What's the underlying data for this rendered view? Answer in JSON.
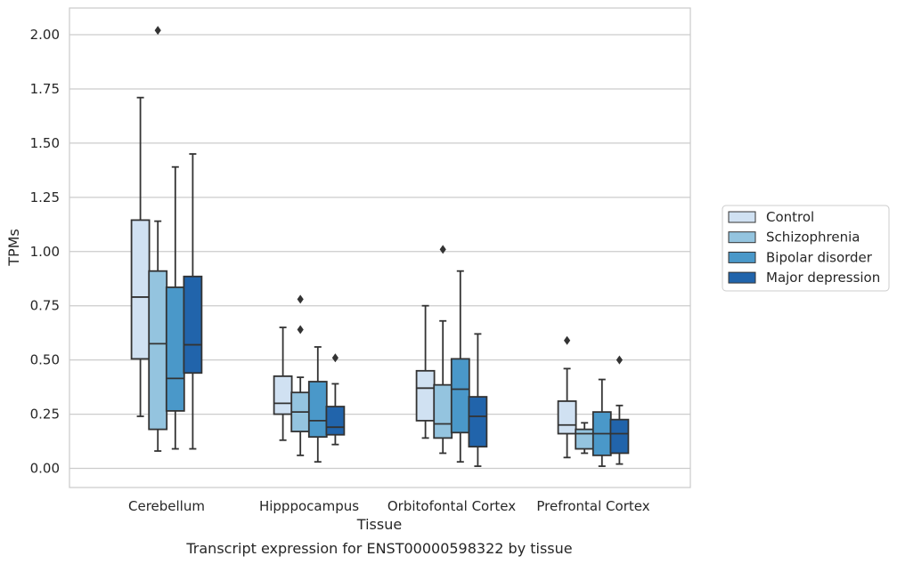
{
  "chart_data": {
    "type": "boxplot",
    "xlabel": "Tissue",
    "ylabel": "TPMs",
    "caption": "Transcript expression for ENST00000598322 by tissue",
    "ylim": [
      -0.09,
      2.12
    ],
    "yticks": [
      "0.00",
      "0.25",
      "0.50",
      "0.75",
      "1.00",
      "1.25",
      "1.50",
      "1.75",
      "2.00"
    ],
    "categories": [
      "Cerebellum",
      "Hipppocampus",
      "Orbitofontal Cortex",
      "Prefrontal Cortex"
    ],
    "grid": "horizontal",
    "legend_position": "right",
    "series": [
      {
        "name": "Control",
        "color": "#d0e1f2",
        "boxes": [
          {
            "whislo": 0.24,
            "q1": 0.505,
            "med": 0.79,
            "q3": 1.145,
            "whishi": 1.71,
            "fliers": []
          },
          {
            "whislo": 0.13,
            "q1": 0.25,
            "med": 0.3,
            "q3": 0.425,
            "whishi": 0.65,
            "fliers": []
          },
          {
            "whislo": 0.14,
            "q1": 0.22,
            "med": 0.37,
            "q3": 0.45,
            "whishi": 0.75,
            "fliers": []
          },
          {
            "whislo": 0.05,
            "q1": 0.16,
            "med": 0.2,
            "q3": 0.31,
            "whishi": 0.46,
            "fliers": [
              0.59
            ]
          }
        ]
      },
      {
        "name": "Schizophrenia",
        "color": "#94c4df",
        "boxes": [
          {
            "whislo": 0.08,
            "q1": 0.18,
            "med": 0.575,
            "q3": 0.91,
            "whishi": 1.14,
            "fliers": [
              2.02
            ]
          },
          {
            "whislo": 0.06,
            "q1": 0.17,
            "med": 0.26,
            "q3": 0.35,
            "whishi": 0.42,
            "fliers": [
              0.78,
              0.64
            ]
          },
          {
            "whislo": 0.07,
            "q1": 0.14,
            "med": 0.205,
            "q3": 0.385,
            "whishi": 0.68,
            "fliers": [
              1.01
            ]
          },
          {
            "whislo": 0.07,
            "q1": 0.09,
            "med": 0.16,
            "q3": 0.18,
            "whishi": 0.21,
            "fliers": []
          }
        ]
      },
      {
        "name": "Bipolar disorder",
        "color": "#4a98c9",
        "boxes": [
          {
            "whislo": 0.09,
            "q1": 0.265,
            "med": 0.415,
            "q3": 0.835,
            "whishi": 1.39,
            "fliers": []
          },
          {
            "whislo": 0.03,
            "q1": 0.145,
            "med": 0.22,
            "q3": 0.4,
            "whishi": 0.56,
            "fliers": []
          },
          {
            "whislo": 0.03,
            "q1": 0.165,
            "med": 0.365,
            "q3": 0.505,
            "whishi": 0.91,
            "fliers": []
          },
          {
            "whislo": 0.01,
            "q1": 0.06,
            "med": 0.16,
            "q3": 0.26,
            "whishi": 0.41,
            "fliers": []
          }
        ]
      },
      {
        "name": "Major depression",
        "color": "#2164ab",
        "boxes": [
          {
            "whislo": 0.09,
            "q1": 0.44,
            "med": 0.57,
            "q3": 0.885,
            "whishi": 1.45,
            "fliers": []
          },
          {
            "whislo": 0.11,
            "q1": 0.155,
            "med": 0.19,
            "q3": 0.285,
            "whishi": 0.39,
            "fliers": [
              0.51
            ]
          },
          {
            "whislo": 0.01,
            "q1": 0.1,
            "med": 0.24,
            "q3": 0.33,
            "whishi": 0.62,
            "fliers": []
          },
          {
            "whislo": 0.02,
            "q1": 0.07,
            "med": 0.16,
            "q3": 0.225,
            "whishi": 0.29,
            "fliers": [
              0.5
            ]
          }
        ]
      }
    ]
  }
}
